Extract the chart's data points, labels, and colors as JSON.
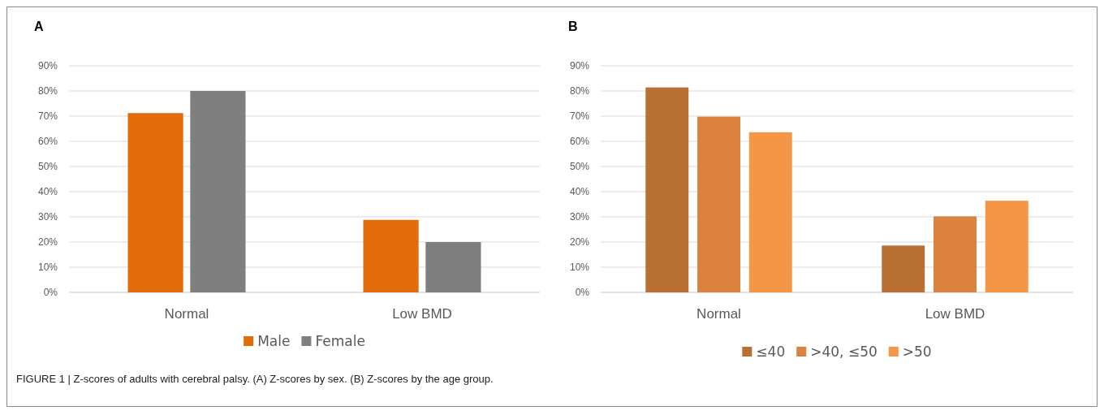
{
  "chart_data": [
    {
      "type": "bar",
      "title": "A",
      "categories": [
        "Normal",
        "Low BMD"
      ],
      "series": [
        {
          "name": "Male",
          "color": "#e36c0a",
          "values": [
            71.2,
            28.8
          ]
        },
        {
          "name": "Female",
          "color": "#7f7f7f",
          "values": [
            80,
            20
          ]
        }
      ],
      "ylim": [
        0,
        90
      ],
      "yticks": [
        {
          "value": 0,
          "label": "0%"
        },
        {
          "value": 10,
          "label": "10%"
        },
        {
          "value": 20,
          "label": "20%"
        },
        {
          "value": 30,
          "label": "30%"
        },
        {
          "value": 40,
          "label": "40%"
        },
        {
          "value": 50,
          "label": "50%"
        },
        {
          "value": 60,
          "label": "60%"
        },
        {
          "value": 70,
          "label": "70%"
        },
        {
          "value": 80,
          "label": "80%"
        },
        {
          "value": 90,
          "label": "90%"
        }
      ],
      "grid": "y",
      "legend": "bottom"
    },
    {
      "type": "bar",
      "title": "B",
      "categories": [
        "Normal",
        "Low BMD"
      ],
      "series": [
        {
          "name": "≤40",
          "color": "#b97032",
          "values": [
            81.4,
            18.6
          ]
        },
        {
          "name": ">40, ≤50",
          "color": "#db823e",
          "values": [
            69.8,
            30.2
          ]
        },
        {
          "name": ">50",
          "color": "#f59646",
          "values": [
            63.6,
            36.4
          ]
        }
      ],
      "ylim": [
        0,
        90
      ],
      "yticks": [
        {
          "value": 0,
          "label": "0%"
        },
        {
          "value": 10,
          "label": "10%"
        },
        {
          "value": 20,
          "label": "20%"
        },
        {
          "value": 30,
          "label": "30%"
        },
        {
          "value": 40,
          "label": "40%"
        },
        {
          "value": 50,
          "label": "50%"
        },
        {
          "value": 60,
          "label": "60%"
        },
        {
          "value": 70,
          "label": "70%"
        },
        {
          "value": 80,
          "label": "80%"
        },
        {
          "value": 90,
          "label": "90%"
        }
      ],
      "grid": "y",
      "legend": "bottom",
      "annotations": [
        "FIGURE 1 | Z-scores of adults with cerebral palsy. (A) Z-scores by sex. (B) Z-scores by the age group."
      ]
    }
  ]
}
